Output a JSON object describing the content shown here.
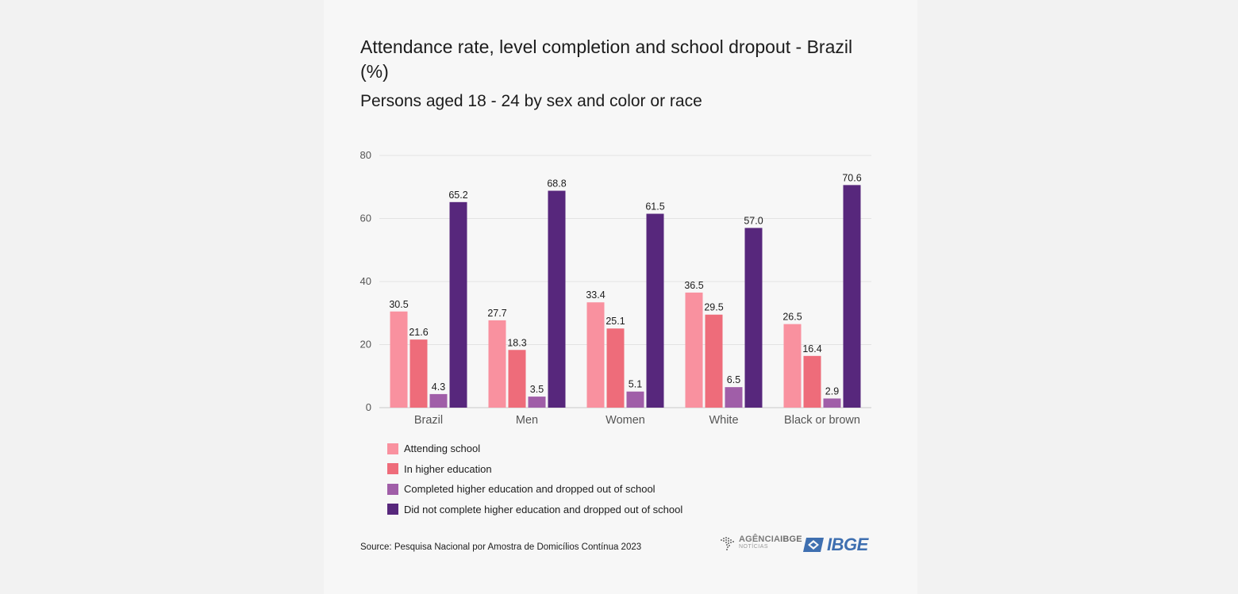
{
  "title": "Attendance rate, level completion and school dropout  - Brazil (%)",
  "subtitle": "Persons aged 18 - 24 by sex and color or race",
  "source": "Source: Pesquisa Nacional por Amostra de Domicílios Contínua 2023",
  "logos": {
    "agencia_prefix": "AGÊNCIA",
    "agencia_bold": "IBGE",
    "agencia_sub": "NOTÍCIAS",
    "ibge": "IBGE"
  },
  "chart_data": {
    "type": "bar",
    "categories": [
      "Brazil",
      "Men",
      "Women",
      "White",
      "Black or brown"
    ],
    "series": [
      {
        "name": "Attending school",
        "color": "#f9919f",
        "values": [
          30.5,
          27.7,
          33.4,
          36.5,
          26.5
        ]
      },
      {
        "name": "In higher education",
        "color": "#ee6c7a",
        "values": [
          21.6,
          18.3,
          25.1,
          29.5,
          16.4
        ]
      },
      {
        "name": "Completed higher education and dropped out of school",
        "color": "#a05ea8",
        "values": [
          4.3,
          3.5,
          5.1,
          6.5,
          2.9
        ]
      },
      {
        "name": "Did not complete higher education and dropped out of school",
        "color": "#57277c",
        "values": [
          65.2,
          68.8,
          61.5,
          57.0,
          70.6
        ]
      }
    ],
    "ylim": [
      0,
      80
    ],
    "yticks": [
      0,
      20,
      40,
      60,
      80
    ],
    "grid": true,
    "legend": "bottom",
    "data_labels": true
  }
}
